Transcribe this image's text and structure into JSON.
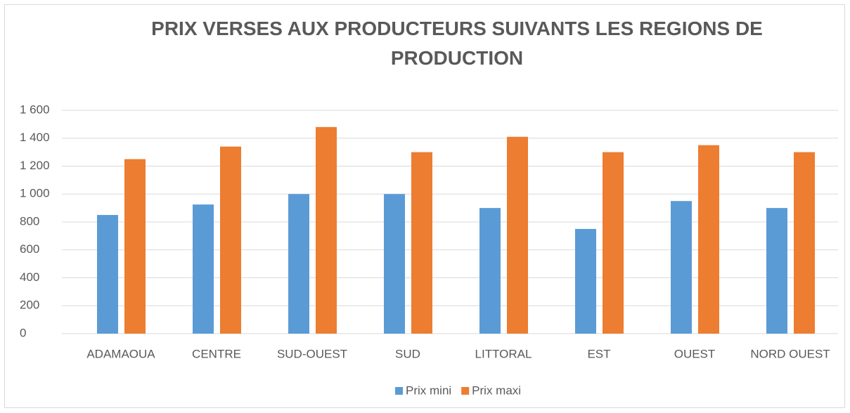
{
  "chart_data": {
    "type": "bar",
    "title": "PRIX VERSES AUX PRODUCTEURS SUIVANTS LES REGIONS DE PRODUCTION",
    "categories": [
      "ADAMAOUA",
      "CENTRE",
      "SUD-OUEST",
      "SUD",
      "LITTORAL",
      "EST",
      "OUEST",
      "NORD OUEST"
    ],
    "series": [
      {
        "name": "Prix mini",
        "color": "#5b9bd5",
        "values": [
          850,
          925,
          1000,
          1000,
          900,
          750,
          950,
          900
        ]
      },
      {
        "name": "Prix maxi",
        "color": "#ed7d31",
        "values": [
          1250,
          1340,
          1480,
          1300,
          1410,
          1300,
          1350,
          1300
        ]
      }
    ],
    "ylim": [
      0,
      1600
    ],
    "yticks": [
      0,
      200,
      400,
      600,
      800,
      {
        "value": 1000,
        "label": "1 000"
      },
      {
        "value": 1200,
        "label": "1 200"
      },
      {
        "value": 1400,
        "label": "1 400"
      },
      {
        "value": 1600,
        "label": "1 600"
      }
    ],
    "grid": true,
    "legend": "bottom"
  }
}
